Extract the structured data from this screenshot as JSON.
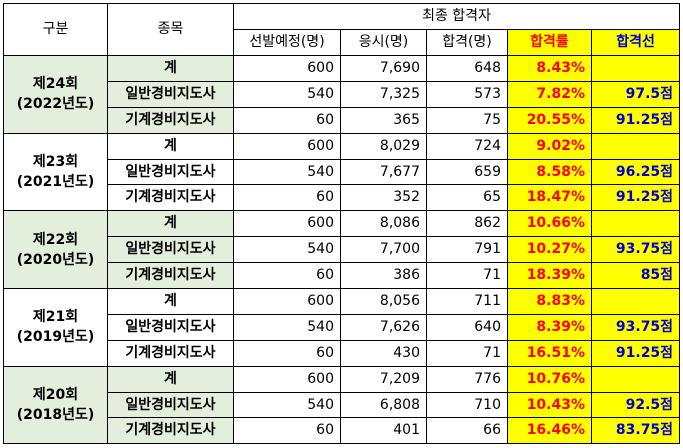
{
  "header": {
    "category": "구분",
    "item": "종목",
    "final_passers": "최종 합격자",
    "planned": "선발예정(명)",
    "applicants": "응시(명)",
    "passed": "합격(명)",
    "pass_rate": "합격률",
    "cutoff": "합격선"
  },
  "rounds": [
    {
      "round": "제24회",
      "year": "(2022년도)",
      "rows": [
        {
          "item": "계",
          "planned": "600",
          "applicants": "7,690",
          "passed": "648",
          "rate": "8.43%",
          "cutoff": ""
        },
        {
          "item": "일반경비지도사",
          "planned": "540",
          "applicants": "7,325",
          "passed": "573",
          "rate": "7.82%",
          "cutoff": "97.5점"
        },
        {
          "item": "기계경비지도사",
          "planned": "60",
          "applicants": "365",
          "passed": "75",
          "rate": "20.55%",
          "cutoff": "91.25점"
        }
      ]
    },
    {
      "round": "제23회",
      "year": "(2021년도)",
      "rows": [
        {
          "item": "계",
          "planned": "600",
          "applicants": "8,029",
          "passed": "724",
          "rate": "9.02%",
          "cutoff": ""
        },
        {
          "item": "일반경비지도사",
          "planned": "540",
          "applicants": "7,677",
          "passed": "659",
          "rate": "8.58%",
          "cutoff": "96.25점"
        },
        {
          "item": "기계경비지도사",
          "planned": "60",
          "applicants": "352",
          "passed": "65",
          "rate": "18.47%",
          "cutoff": "91.25점"
        }
      ]
    },
    {
      "round": "제22회",
      "year": "(2020년도)",
      "rows": [
        {
          "item": "계",
          "planned": "600",
          "applicants": "8,086",
          "passed": "862",
          "rate": "10.66%",
          "cutoff": ""
        },
        {
          "item": "일반경비지도사",
          "planned": "540",
          "applicants": "7,700",
          "passed": "791",
          "rate": "10.27%",
          "cutoff": "93.75점"
        },
        {
          "item": "기계경비지도사",
          "planned": "60",
          "applicants": "386",
          "passed": "71",
          "rate": "18.39%",
          "cutoff": "85점"
        }
      ]
    },
    {
      "round": "제21회",
      "year": "(2019년도)",
      "rows": [
        {
          "item": "계",
          "planned": "600",
          "applicants": "8,056",
          "passed": "711",
          "rate": "8.83%",
          "cutoff": ""
        },
        {
          "item": "일반경비지도사",
          "planned": "540",
          "applicants": "7,626",
          "passed": "640",
          "rate": "8.39%",
          "cutoff": "93.75점"
        },
        {
          "item": "기계경비지도사",
          "planned": "60",
          "applicants": "430",
          "passed": "71",
          "rate": "16.51%",
          "cutoff": "91.25점"
        }
      ]
    },
    {
      "round": "제20회",
      "year": "(2018년도)",
      "rows": [
        {
          "item": "계",
          "planned": "600",
          "applicants": "7,209",
          "passed": "776",
          "rate": "10.76%",
          "cutoff": ""
        },
        {
          "item": "일반경비지도사",
          "planned": "540",
          "applicants": "6,808",
          "passed": "710",
          "rate": "10.43%",
          "cutoff": "92.5점"
        },
        {
          "item": "기계경비지도사",
          "planned": "60",
          "applicants": "401",
          "passed": "66",
          "rate": "16.46%",
          "cutoff": "83.75점"
        }
      ]
    }
  ]
}
